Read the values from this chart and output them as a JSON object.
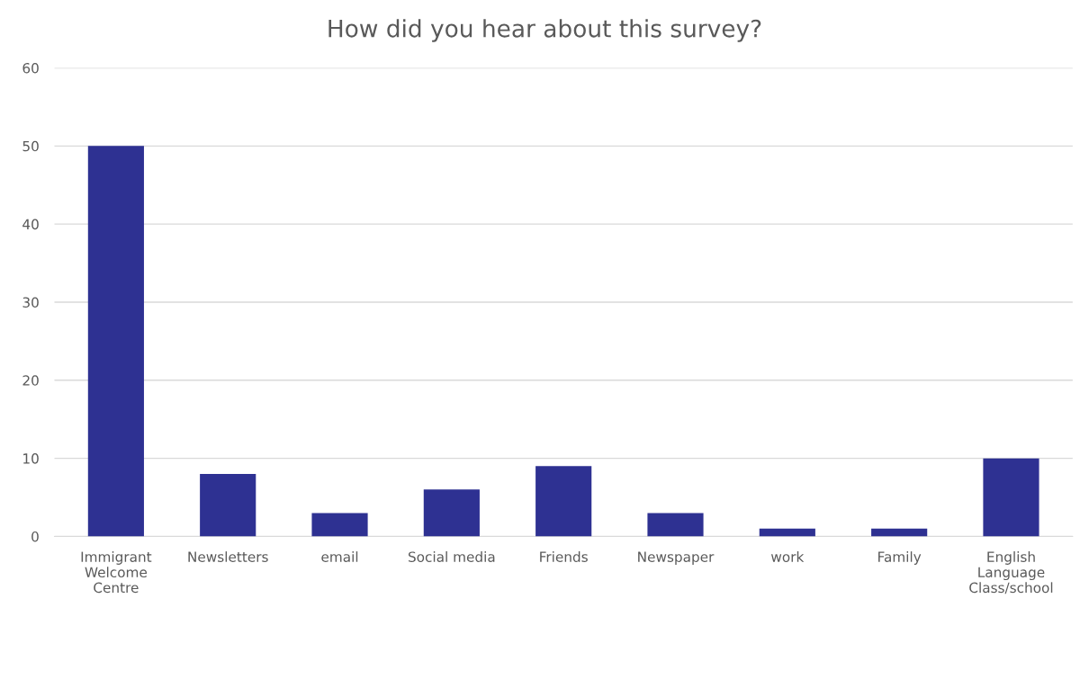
{
  "chart_data": {
    "type": "bar",
    "title": "How did you hear about this survey?",
    "categories": [
      "Immigrant\nWelcome\nCentre",
      "Newsletters",
      "email",
      "Social media",
      "Friends",
      "Newspaper",
      "work",
      "Family",
      "English\nLanguage\nClass/school"
    ],
    "values": [
      50,
      8,
      3,
      6,
      9,
      3,
      1,
      1,
      10
    ],
    "color": "#2e3192",
    "ylim": [
      0,
      60
    ],
    "yticks": [
      0,
      10,
      20,
      30,
      40,
      50,
      60
    ],
    "grid": "y",
    "legend": false
  }
}
